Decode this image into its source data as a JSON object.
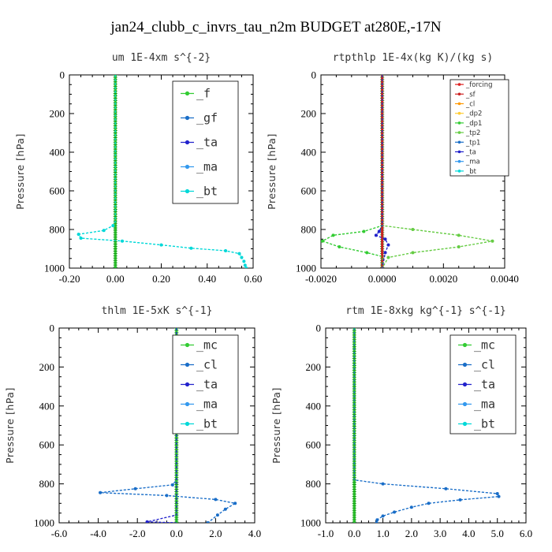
{
  "figure_title": "jan24_clubb_c_invrs_tau_n2m  BUDGET at280E,-17N",
  "chart_data": [
    {
      "type": "line",
      "title": "um  1E-4xm s^{-2}",
      "ylabel": "Pressure [hPa]",
      "xlim": [
        -0.2,
        0.6
      ],
      "xticks": [
        "-0.20",
        "0.00",
        "0.20",
        "0.40",
        "0.60"
      ],
      "ylim": [
        1000,
        0
      ],
      "yticks": [
        "0",
        "200",
        "400",
        "600",
        "800",
        "1000"
      ],
      "legend_placement": "top-right",
      "series": [
        {
          "name": "_f",
          "color": "#33cc33",
          "points": [
            [
              0,
              0
            ],
            [
              0,
              100
            ],
            [
              0,
              200
            ],
            [
              0,
              300
            ],
            [
              0,
              400
            ],
            [
              0,
              500
            ],
            [
              0,
              600
            ],
            [
              0,
              700
            ],
            [
              0,
              800
            ],
            [
              0,
              900
            ],
            [
              0,
              1000
            ]
          ]
        },
        {
          "name": "_gf",
          "color": "#1a6ec8",
          "points": [
            [
              0,
              0
            ],
            [
              0,
              200
            ],
            [
              0,
              400
            ],
            [
              0,
              600
            ],
            [
              0,
              1000
            ]
          ]
        },
        {
          "name": "_ta",
          "color": "#2222cc",
          "points": [
            [
              0,
              0
            ],
            [
              0,
              600
            ],
            [
              0,
              1000
            ]
          ]
        },
        {
          "name": "_ma",
          "color": "#3399ee",
          "points": [
            [
              0,
              0
            ],
            [
              0,
              600
            ],
            [
              0,
              1000
            ]
          ]
        },
        {
          "name": "_bt",
          "color": "#00d8d8",
          "points": [
            [
              0,
              0
            ],
            [
              0,
              400
            ],
            [
              0,
              760
            ],
            [
              -0.01,
              780
            ],
            [
              -0.05,
              805
            ],
            [
              -0.16,
              825
            ],
            [
              -0.15,
              845
            ],
            [
              0.03,
              860
            ],
            [
              0.2,
              880
            ],
            [
              0.33,
              897
            ],
            [
              0.48,
              910
            ],
            [
              0.54,
              925
            ],
            [
              0.55,
              945
            ],
            [
              0.56,
              965
            ],
            [
              0.565,
              985
            ],
            [
              0.57,
              1000
            ]
          ]
        }
      ]
    },
    {
      "type": "line",
      "title": "rtpthlp  1E-4x(kg K)/(kg s)",
      "ylabel": "Pressure [hPa]",
      "xlim": [
        -0.002,
        0.004
      ],
      "xticks": [
        "-0.0020",
        "0.0000",
        "0.0020",
        "0.0040"
      ],
      "ylim": [
        1000,
        0
      ],
      "yticks": [
        "0",
        "200",
        "400",
        "600",
        "800",
        "1000"
      ],
      "legend_placement": "top-right",
      "series": [
        {
          "name": "_forcing",
          "color": "#dd2222",
          "points": [
            [
              0,
              0
            ],
            [
              0,
              1000
            ]
          ]
        },
        {
          "name": "_sf",
          "color": "#cc2222",
          "points": [
            [
              0,
              0
            ],
            [
              0,
              1000
            ]
          ]
        },
        {
          "name": "_cl",
          "color": "#ff9900",
          "points": [
            [
              0,
              0
            ],
            [
              0,
              1000
            ]
          ]
        },
        {
          "name": "_dp2",
          "color": "#ffcc33",
          "points": [
            [
              0,
              0
            ],
            [
              0,
              1000
            ]
          ]
        },
        {
          "name": "_dp1",
          "color": "#33cc33",
          "points": [
            [
              0,
              0
            ],
            [
              0,
              780
            ],
            [
              -0.0006,
              810
            ],
            [
              -0.0016,
              830
            ],
            [
              -0.00195,
              860
            ],
            [
              -0.0014,
              890
            ],
            [
              -0.0005,
              920
            ],
            [
              0,
              940
            ],
            [
              0,
              1000
            ]
          ]
        },
        {
          "name": "_tp2",
          "color": "#66cc44",
          "points": [
            [
              0,
              0
            ],
            [
              0,
              780
            ],
            [
              0.001,
              800
            ],
            [
              0.0025,
              830
            ],
            [
              0.0036,
              860
            ],
            [
              0.0025,
              890
            ],
            [
              0.001,
              920
            ],
            [
              0.0002,
              945
            ],
            [
              0,
              1000
            ]
          ]
        },
        {
          "name": "_tp1",
          "color": "#1a6ec8",
          "points": [
            [
              0,
              0
            ],
            [
              0,
              1000
            ]
          ]
        },
        {
          "name": "_ta",
          "color": "#2222cc",
          "points": [
            [
              0,
              0
            ],
            [
              0,
              780
            ],
            [
              -0.0001,
              810
            ],
            [
              -0.0002,
              830
            ],
            [
              0.0001,
              850
            ],
            [
              0.0002,
              880
            ],
            [
              0.0001,
              920
            ],
            [
              0,
              1000
            ]
          ]
        },
        {
          "name": "_ma",
          "color": "#3399ee",
          "points": [
            [
              0,
              0
            ],
            [
              0,
              1000
            ]
          ]
        },
        {
          "name": "_bt",
          "color": "#00d8d8",
          "points": [
            [
              0,
              0
            ],
            [
              0,
              1000
            ]
          ]
        }
      ]
    },
    {
      "type": "line",
      "title": "thlm  1E-5xK s^{-1}",
      "ylabel": "Pressure [hPa]",
      "xlim": [
        -6.0,
        4.0
      ],
      "xticks": [
        "-6.0",
        "-4.0",
        "-2.0",
        "0.0",
        "2.0",
        "4.0"
      ],
      "ylim": [
        1000,
        0
      ],
      "yticks": [
        "0",
        "200",
        "400",
        "600",
        "800",
        "1000"
      ],
      "legend_placement": "top-right",
      "series": [
        {
          "name": "_mc",
          "color": "#33cc33",
          "points": [
            [
              0,
              0
            ],
            [
              0,
              100
            ],
            [
              0,
              200
            ],
            [
              0,
              300
            ],
            [
              0,
              400
            ],
            [
              0,
              500
            ],
            [
              0,
              600
            ],
            [
              0,
              700
            ],
            [
              0,
              800
            ],
            [
              0,
              900
            ],
            [
              0,
              1000
            ]
          ]
        },
        {
          "name": "_cl",
          "color": "#1a6ec8",
          "points": [
            [
              0,
              0
            ],
            [
              0,
              780
            ],
            [
              -0.2,
              805
            ],
            [
              -2.1,
              825
            ],
            [
              -3.9,
              845
            ],
            [
              -0.5,
              860
            ],
            [
              2.0,
              880
            ],
            [
              3.0,
              900
            ],
            [
              2.5,
              930
            ],
            [
              2.1,
              960
            ],
            [
              1.6,
              1000
            ]
          ]
        },
        {
          "name": "_ta",
          "color": "#2222cc",
          "points": [
            [
              0,
              0
            ],
            [
              0,
              800
            ],
            [
              0,
              960
            ],
            [
              -1.5,
              995
            ],
            [
              0,
              1000
            ]
          ]
        },
        {
          "name": "_ma",
          "color": "#3399ee",
          "points": [
            [
              0,
              0
            ],
            [
              0,
              1000
            ]
          ]
        },
        {
          "name": "_bt",
          "color": "#00d8d8",
          "points": [
            [
              0,
              0
            ],
            [
              0,
              1000
            ]
          ]
        }
      ]
    },
    {
      "type": "line",
      "title": "rtm  1E-8xkg kg^{-1} s^{-1}",
      "ylabel": "Pressure [hPa]",
      "xlim": [
        -1.0,
        6.0
      ],
      "xticks": [
        "-1.0",
        "0.0",
        "1.0",
        "2.0",
        "3.0",
        "4.0",
        "5.0",
        "6.0"
      ],
      "ylim": [
        1000,
        0
      ],
      "yticks": [
        "0",
        "200",
        "400",
        "600",
        "800",
        "1000"
      ],
      "legend_placement": "top-right",
      "series": [
        {
          "name": "_mc",
          "color": "#33cc33",
          "points": [
            [
              0,
              0
            ],
            [
              0,
              100
            ],
            [
              0,
              200
            ],
            [
              0,
              300
            ],
            [
              0,
              400
            ],
            [
              0,
              500
            ],
            [
              0,
              600
            ],
            [
              0,
              700
            ],
            [
              0,
              800
            ],
            [
              0,
              900
            ],
            [
              0,
              1000
            ]
          ]
        },
        {
          "name": "_cl",
          "color": "#1a6ec8",
          "points": [
            [
              0,
              0
            ],
            [
              0,
              780
            ],
            [
              1.0,
              800
            ],
            [
              3.2,
              825
            ],
            [
              5.0,
              850
            ],
            [
              5.05,
              865
            ],
            [
              3.7,
              882
            ],
            [
              2.6,
              900
            ],
            [
              2.0,
              920
            ],
            [
              1.4,
              945
            ],
            [
              1.0,
              965
            ],
            [
              0.8,
              985
            ],
            [
              0.78,
              1000
            ]
          ]
        },
        {
          "name": "_ta",
          "color": "#2222cc",
          "points": [
            [
              0,
              0
            ],
            [
              0,
              1000
            ]
          ]
        },
        {
          "name": "_ma",
          "color": "#3399ee",
          "points": [
            [
              0,
              0
            ],
            [
              0,
              1000
            ]
          ]
        },
        {
          "name": "_bt",
          "color": "#00d8d8",
          "points": [
            [
              0,
              0
            ],
            [
              0,
              1000
            ]
          ]
        }
      ]
    }
  ]
}
